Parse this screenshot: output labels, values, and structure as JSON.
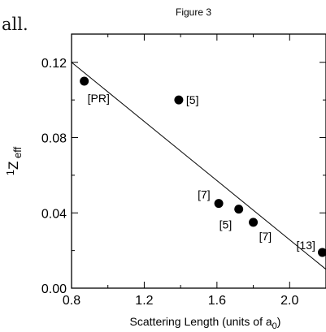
{
  "page_fragment": "all.",
  "chart_data": {
    "type": "scatter",
    "title": "Figure 3",
    "xlabel": "Scattering Length (units of a",
    "xlabel_sub": "0",
    "xlabel_suffix": ")",
    "ylabel_pre": "1",
    "ylabel_main": "Z",
    "ylabel_sub": "eff",
    "xlim": [
      0.8,
      2.2
    ],
    "ylim": [
      0.0,
      0.135
    ],
    "x_ticks": [
      0.8,
      1.2,
      1.6,
      2.0
    ],
    "x_tick_labels": [
      "0.8",
      "1.2",
      "1.6",
      "2.0"
    ],
    "y_ticks": [
      0.0,
      0.04,
      0.08,
      0.12
    ],
    "y_tick_labels": [
      "0.00",
      "0.04",
      "0.08",
      "0.12"
    ],
    "x_minor_ticks": [
      1.0,
      1.4,
      1.8,
      2.2
    ],
    "y_minor_ticks": [
      0.02,
      0.06,
      0.1
    ],
    "points": [
      {
        "x": 0.87,
        "y": 0.11,
        "label": "[PR]"
      },
      {
        "x": 1.39,
        "y": 0.1,
        "label": "[5]"
      },
      {
        "x": 1.61,
        "y": 0.045,
        "label": "[7]"
      },
      {
        "x": 1.72,
        "y": 0.042,
        "label": "[5]"
      },
      {
        "x": 1.8,
        "y": 0.035,
        "label": "[7]"
      },
      {
        "x": 2.18,
        "y": 0.019,
        "label": "[13]"
      }
    ],
    "fit_line": [
      {
        "x": 0.8,
        "y": 0.12
      },
      {
        "x": 2.2,
        "y": 0.01
      }
    ]
  }
}
